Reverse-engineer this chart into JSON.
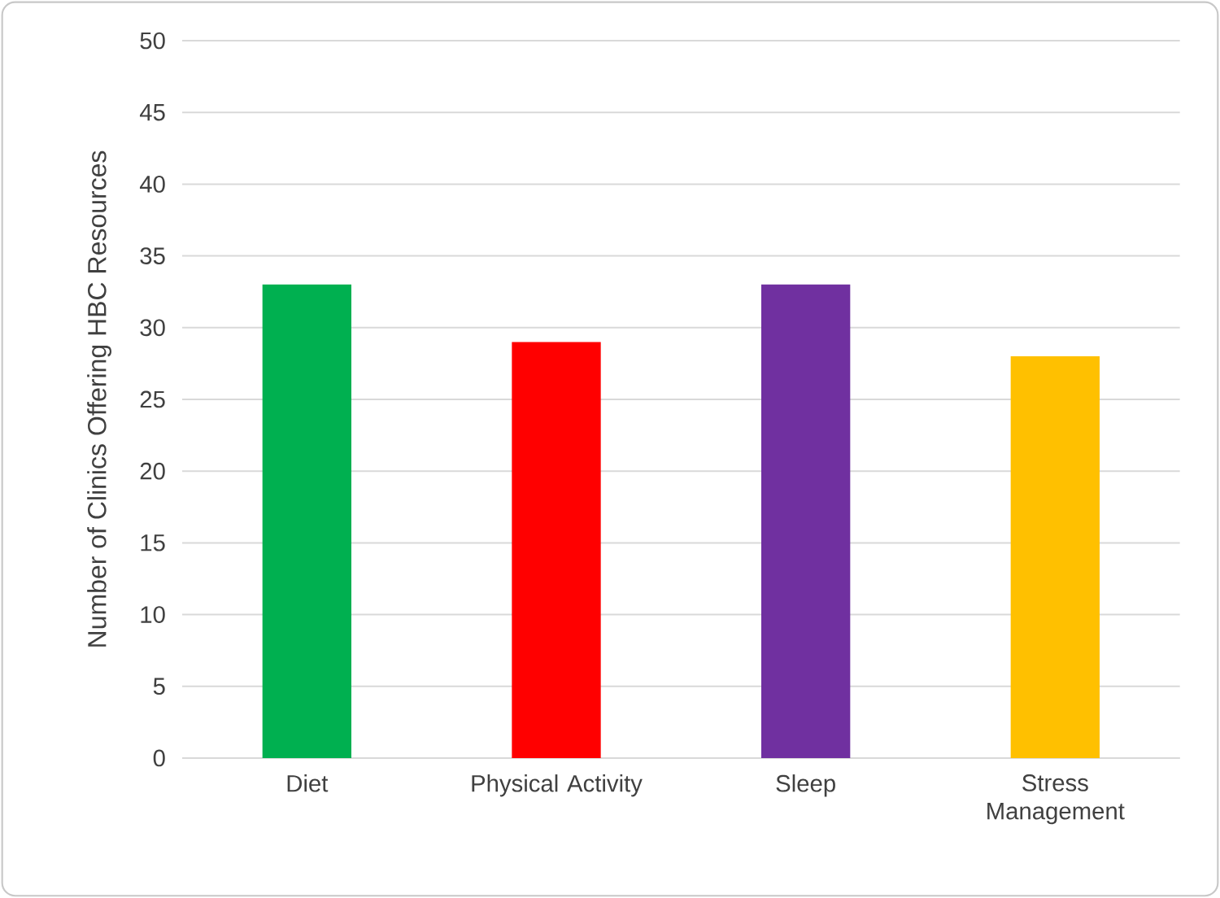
{
  "chart_data": {
    "type": "bar",
    "ylabel": "Number of Clinics Offering HBC Resources",
    "categories": [
      "Diet",
      "Physical Activity",
      "Sleep",
      "Stress Management"
    ],
    "values": [
      33,
      29,
      33,
      28
    ],
    "colors": [
      "#00b050",
      "#ff0000",
      "#7030a0",
      "#ffc000"
    ],
    "ylim": [
      0,
      50
    ],
    "yticks": [
      0,
      5,
      10,
      15,
      20,
      25,
      30,
      35,
      40,
      45,
      50
    ],
    "grid": "y"
  }
}
